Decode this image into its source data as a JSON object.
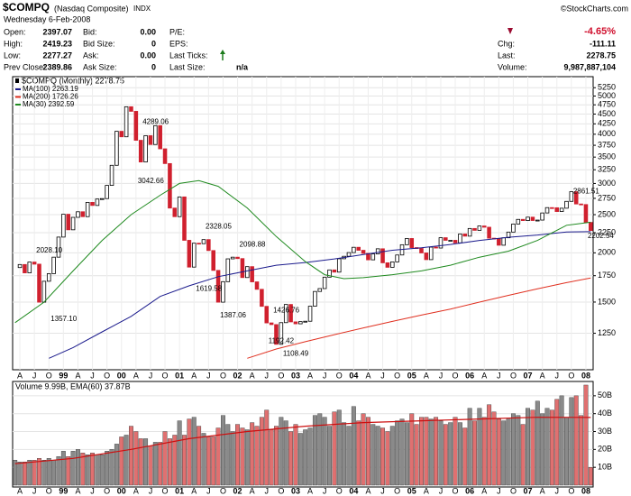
{
  "header": {
    "title": "$COMPQ",
    "subtitle": "(Nasdaq Composite)",
    "exchange": "INDX",
    "copyright": "©StockCharts.com",
    "date": "Wednesday  6-Feb-2008",
    "columns": [
      [
        {
          "label": "Open:",
          "value": "2397.07"
        },
        {
          "label": "High:",
          "value": "2419.23"
        },
        {
          "label": "Low:",
          "value": "2277.27"
        },
        {
          "label": "Prev Close:",
          "value": "2389.86"
        }
      ],
      [
        {
          "label": "Bid:",
          "value": "0.00"
        },
        {
          "label": "Bid Size:",
          "value": "0"
        },
        {
          "label": "Ask:",
          "value": "0.00"
        },
        {
          "label": "Ask Size:",
          "value": "0"
        }
      ],
      [
        {
          "label": "P/E:"
        },
        {
          "label": "EPS:"
        },
        {
          "label": "Last Ticks:"
        },
        {
          "label": "Last Size:",
          "value": "n/a"
        }
      ]
    ],
    "change_pct": "-4.65%",
    "right": [
      {
        "label": "Chg:",
        "value": "-111.11"
      },
      {
        "label": "Last:",
        "value": "2278.75"
      },
      {
        "label": "Volume:",
        "value": "9,987,887,104"
      }
    ]
  },
  "chart_data": [
    {
      "type": "candlestick",
      "legend_title": "$COMPQ (Monthly) 2278.75",
      "log_scale": true,
      "grid": true,
      "categories": [
        null,
        "A",
        null,
        null,
        "J",
        null,
        null,
        "O",
        null,
        null,
        "99",
        null,
        null,
        "A",
        null,
        null,
        "J",
        null,
        null,
        "O",
        null,
        null,
        "00",
        null,
        null,
        "A",
        null,
        null,
        "J",
        null,
        null,
        "O",
        null,
        null,
        "01",
        null,
        null,
        "A",
        null,
        null,
        "J",
        null,
        null,
        "O",
        null,
        null,
        "02",
        null,
        null,
        "A",
        null,
        null,
        "J",
        null,
        null,
        "O",
        null,
        null,
        "03",
        null,
        null,
        "A",
        null,
        null,
        "J",
        null,
        null,
        "O",
        null,
        null,
        "04",
        null,
        null,
        "A",
        null,
        null,
        "J",
        null,
        null,
        "O",
        null,
        null,
        "05",
        null,
        null,
        "A",
        null,
        null,
        "J",
        null,
        null,
        "O",
        null,
        null,
        "06",
        null,
        null,
        "A",
        null,
        null,
        "J",
        null,
        null,
        "O",
        null,
        null,
        "07",
        null,
        null,
        "A",
        null,
        null,
        "J",
        null,
        null,
        "O",
        null,
        null,
        "08",
        null
      ],
      "close": [
        1835,
        1868,
        1779,
        1895,
        1872,
        1499,
        1694,
        1771,
        1950,
        2193,
        2506,
        2288,
        2461,
        2543,
        2471,
        2686,
        2638,
        2739,
        2746,
        2966,
        3336,
        4069,
        3940,
        4697,
        4573,
        3861,
        3401,
        3966,
        3767,
        4206,
        3673,
        3370,
        2598,
        2471,
        2773,
        2152,
        1840,
        2116,
        2110,
        2161,
        2027,
        1805,
        1499,
        1690,
        1931,
        1950,
        1934,
        1731,
        1845,
        1688,
        1616,
        1463,
        1328,
        1315,
        1172,
        1330,
        1479,
        1336,
        1321,
        1338,
        1341,
        1464,
        1596,
        1623,
        1735,
        1810,
        1787,
        1932,
        1960,
        2003,
        2066,
        2030,
        1994,
        1920,
        1987,
        2048,
        1887,
        1838,
        1897,
        1975,
        2097,
        2175,
        2062,
        2052,
        1999,
        1922,
        2068,
        2057,
        2185,
        2152,
        2152,
        2120,
        2233,
        2205,
        2306,
        2281,
        2340,
        2323,
        2179,
        2172,
        2091,
        2184,
        2258,
        2367,
        2432,
        2415,
        2464,
        2416,
        2422,
        2525,
        2605,
        2603,
        2546,
        2596,
        2702,
        2859,
        2661,
        2652,
        2389,
        2278.75
      ],
      "up_color": "#ffffff",
      "down_color": "#d0202e",
      "series": [
        {
          "name": "MA(100) 2263.19",
          "color": "#1a1a8c",
          "x": [
            7,
            12,
            18,
            24,
            30,
            36,
            42,
            48,
            54,
            60,
            66,
            72,
            78,
            84,
            90,
            96,
            102,
            108,
            114,
            119
          ],
          "values": [
            1080,
            1150,
            1260,
            1380,
            1550,
            1650,
            1740,
            1800,
            1860,
            1890,
            1930,
            1980,
            2030,
            2060,
            2100,
            2150,
            2190,
            2220,
            2260,
            2263.19
          ]
        },
        {
          "name": "MA(200) 1726.26",
          "color": "#e03020",
          "x": [
            48,
            54,
            60,
            66,
            72,
            78,
            84,
            90,
            96,
            102,
            108,
            114,
            119
          ],
          "values": [
            1080,
            1140,
            1190,
            1240,
            1290,
            1340,
            1390,
            1440,
            1500,
            1560,
            1620,
            1680,
            1726.26
          ]
        },
        {
          "name": "MA(30) 2392.59",
          "color": "#1f8a1f",
          "x": [
            0,
            6,
            12,
            18,
            24,
            30,
            34,
            38,
            42,
            48,
            54,
            60,
            64,
            68,
            72,
            78,
            84,
            90,
            96,
            102,
            108,
            114,
            119
          ],
          "values": [
            1330,
            1500,
            1800,
            2150,
            2500,
            2800,
            3000,
            3050,
            2950,
            2600,
            2200,
            1900,
            1760,
            1720,
            1730,
            1760,
            1800,
            1860,
            1950,
            2020,
            2150,
            2350,
            2392.59
          ]
        }
      ],
      "annotations": [
        {
          "index": 7,
          "value": 1357.1,
          "label": "1357.10"
        },
        {
          "index": 4,
          "value": 2028.1,
          "label": "2028.10"
        },
        {
          "index": 26,
          "value": 4289.06
        },
        {
          "index": 25,
          "value": 3042.66
        },
        {
          "index": 39,
          "value": 2328.05
        },
        {
          "index": 37,
          "value": 1619.58
        },
        {
          "index": 46,
          "value": 2098.88
        },
        {
          "index": 42,
          "value": 1387.06
        },
        {
          "index": 53,
          "value": 1426.76
        },
        {
          "index": 52,
          "value": 1192.42
        },
        {
          "index": 55,
          "value": 1108.49
        },
        {
          "index": 115,
          "value": 2861.51
        },
        {
          "index": 118,
          "value": 2202.54
        }
      ],
      "ylim": [
        1010,
        5600
      ],
      "yticks": [
        1250,
        1500,
        1750,
        2000,
        2250,
        2500,
        2750,
        3000,
        3250,
        3500,
        3750,
        4000,
        4250,
        4500,
        4750,
        5000,
        5250
      ]
    },
    {
      "type": "bar",
      "title": "Volume 9.99B, EMA(60) 37.87B",
      "up_color": "#8a8a8a",
      "down_color": "#e07070",
      "values": [
        14,
        13,
        13,
        14,
        14,
        15,
        14,
        15,
        14,
        16,
        19,
        16,
        19,
        20,
        18,
        17,
        18,
        17,
        17,
        19,
        20,
        23,
        27,
        28,
        33,
        30,
        26,
        26,
        22,
        24,
        24,
        30,
        26,
        28,
        36,
        28,
        37,
        38,
        33,
        29,
        27,
        27,
        32,
        39,
        34,
        30,
        34,
        32,
        31,
        35,
        33,
        38,
        42,
        31,
        33,
        38,
        36,
        30,
        34,
        29,
        31,
        32,
        39,
        40,
        38,
        33,
        41,
        42,
        35,
        33,
        44,
        36,
        40,
        38,
        34,
        33,
        32,
        30,
        33,
        36,
        37,
        35,
        40,
        34,
        38,
        38,
        37,
        38,
        36,
        34,
        35,
        38,
        35,
        32,
        43,
        36,
        43,
        38,
        45,
        41,
        37,
        36,
        37,
        40,
        39,
        34,
        43,
        42,
        47,
        40,
        43,
        42,
        48,
        50,
        38,
        49,
        50,
        39,
        56,
        9.99
      ],
      "series": [
        {
          "name": "EMA(60)",
          "color": "#cc1010",
          "x": [
            0,
            12,
            24,
            36,
            48,
            60,
            72,
            84,
            96,
            108,
            119
          ],
          "values": [
            12,
            15,
            20,
            26,
            30,
            33,
            35,
            36,
            37,
            38,
            37.87
          ]
        }
      ],
      "ylim": [
        0,
        58
      ],
      "yticks": [
        {
          "value": 10,
          "label": "10B"
        },
        {
          "value": 20,
          "label": "20B"
        },
        {
          "value": 30,
          "label": "30B"
        },
        {
          "value": 40,
          "label": "40B"
        },
        {
          "value": 50,
          "label": "50B"
        }
      ]
    }
  ]
}
